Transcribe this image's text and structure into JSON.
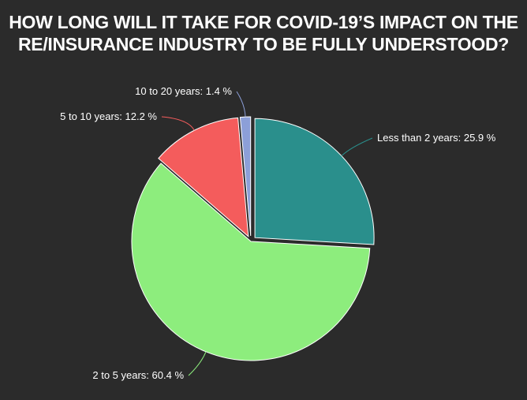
{
  "chart_data": {
    "type": "pie",
    "title_lines": [
      "HOW LONG WILL IT TAKE FOR COVID-19’S IMPACT ON THE",
      "RE/INSURANCE INDUSTRY TO BE FULLY UNDERSTOOD?"
    ],
    "slices": [
      {
        "name": "Less than 2 years",
        "value": 25.9,
        "label": "Less than 2 years: 25.9 %",
        "color": "#2a8f8c",
        "exploded": true
      },
      {
        "name": "2 to 5 years",
        "value": 60.4,
        "label": "2 to 5 years: 60.4 %",
        "color": "#8ded7d",
        "exploded": false
      },
      {
        "name": "5 to 10 years",
        "value": 12.2,
        "label": "5 to 10 years: 12.2 %",
        "color": "#f45c5c",
        "exploded": true
      },
      {
        "name": "10 to 20 years",
        "value": 1.4,
        "label": "10 to 20 years: 1.4 %",
        "color": "#8c9fd8",
        "exploded": true
      }
    ],
    "start_angle": "12 o'clock",
    "direction": "clockwise",
    "legend": "none"
  },
  "colors": {
    "background": "#2b2b2b",
    "text": "#ffffff",
    "slice_border": "#ffffff"
  }
}
